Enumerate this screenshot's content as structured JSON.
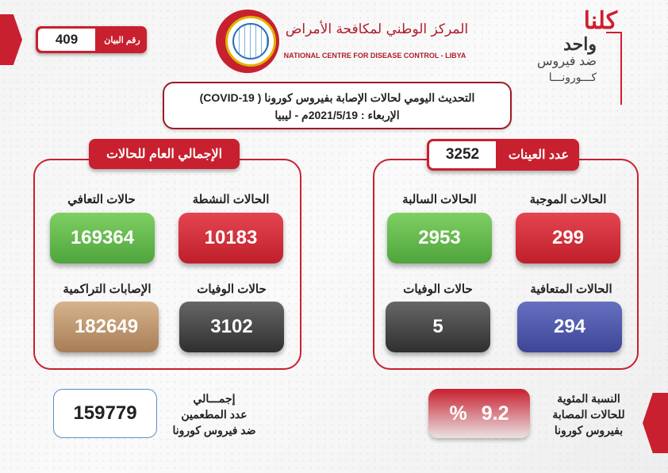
{
  "statement": {
    "label": "رقم البيان",
    "number": "409"
  },
  "org": {
    "name_ar": "المركز الوطني لمكافحة الأمراض",
    "name_en": "NATIONAL CENTRE FOR DISEASE CONTROL - LIBYA"
  },
  "slogan": {
    "line1": "كلنا",
    "line2": "واحد",
    "line3": "ضد فيروس",
    "line4": "كـــورونـــا"
  },
  "title": {
    "line1": "التحديث اليومي لحالات الإصابة بفيروس كورونا ( COVID-19)",
    "line2": "الإربعاء : 2021/5/19م - ليبيا"
  },
  "overall": {
    "header": "الإجمالي العام للحالات",
    "items": [
      {
        "label": "الحالات النشطة",
        "value": "10183",
        "color": "#d3303b"
      },
      {
        "label": "حالات التعافي",
        "value": "169364",
        "color": "#62b94c"
      },
      {
        "label": "حالات الوفيات",
        "value": "3102",
        "color": "#444444"
      },
      {
        "label": "الإصابات التراكمية",
        "value": "182649",
        "color": "#bf9670"
      }
    ]
  },
  "samples": {
    "header": "عدد العينات",
    "count": "3252",
    "items": [
      {
        "label": "الحالات الموجبة",
        "value": "299",
        "color": "#d3303b"
      },
      {
        "label": "الحالات السالبة",
        "value": "2953",
        "color": "#62b94c"
      },
      {
        "label": "الحالات المتعافية",
        "value": "294",
        "color": "#4b53a8"
      },
      {
        "label": "حالات الوفيات",
        "value": "5",
        "color": "#444444"
      }
    ]
  },
  "vaccinated": {
    "line1": "إجمـــالي",
    "line2": "عدد المطعمين",
    "line3": "ضد فيروس كورونا",
    "value": "159779"
  },
  "positivity": {
    "line1": "النسبة المئوية",
    "line2": "للحالات المصابة",
    "line3": "بفيروس كورونا",
    "value": "9.2",
    "unit": "%"
  },
  "colors": {
    "brand_red": "#c8202f"
  }
}
